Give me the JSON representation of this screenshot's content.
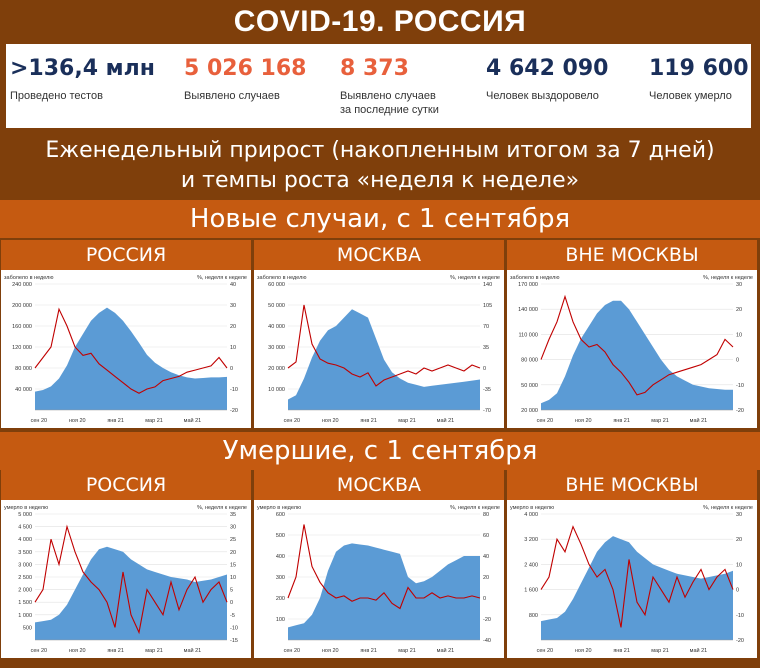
{
  "header": {
    "title": "COVID-19. РОССИЯ",
    "subtitle_line1": "Еженедельный прирост (накопленным итогом за 7 дней)",
    "subtitle_line2": "и темпы роста «неделя к неделе»",
    "section_cases": "Новые случаи, с 1 сентября",
    "section_deaths": "Умершие, с 1 сентября"
  },
  "stats": [
    {
      "value": ">136,4 млн",
      "label1": "Проведено тестов",
      "label2": "",
      "color": "#1a2f5a"
    },
    {
      "value": "5 026 168",
      "label1": "Выявлено случаев",
      "label2": "",
      "color": "#e8603c"
    },
    {
      "value": "8 373",
      "label1": "Выявлено случаев",
      "label2": "за последние сутки",
      "color": "#e8603c"
    },
    {
      "value": "4 642 090",
      "label1": "Человек выздоровело",
      "label2": "",
      "color": "#1a2f5a"
    },
    {
      "value": "119 600",
      "label1": "Человек умерло",
      "label2": "",
      "color": "#1a2f5a"
    }
  ],
  "colors": {
    "area": "#5b9bd5",
    "line": "#c00000"
  },
  "chart_data": [
    {
      "type": "area",
      "panel": "РОССИЯ",
      "ylabel": "заболело в неделю",
      "y2label": "%, неделя к неделе",
      "x_ticks": [
        "сен 20",
        "ноя 20",
        "янв 21",
        "мар 21",
        "май 21"
      ],
      "y_ticks": [
        "240 000",
        "200 000",
        "160 000",
        "120 000",
        "80 000",
        "40 000"
      ],
      "y2_ticks": [
        "40",
        "30",
        "20",
        "10",
        "0",
        "-10",
        "-20"
      ],
      "ylim": [
        0,
        240000
      ],
      "y2lim": [
        -20,
        40
      ],
      "series": [
        {
          "type": "area",
          "axis": "left",
          "values": [
            35000,
            38000,
            45000,
            60000,
            85000,
            120000,
            145000,
            170000,
            185000,
            195000,
            185000,
            170000,
            150000,
            128000,
            105000,
            90000,
            80000,
            72000,
            66000,
            62000,
            60000,
            61000,
            62000,
            62000,
            63000
          ]
        },
        {
          "type": "line",
          "axis": "right",
          "values": [
            0,
            5,
            10,
            28,
            20,
            10,
            6,
            7,
            2,
            -1,
            -4,
            -7,
            -10,
            -12,
            -10,
            -9,
            -6,
            -5,
            -4,
            -2,
            -1,
            0,
            1,
            5,
            0
          ]
        }
      ]
    },
    {
      "type": "area",
      "panel": "МОСКВА",
      "ylabel": "заболело в неделю",
      "y2label": "%, неделя к неделе",
      "x_ticks": [
        "сен 20",
        "ноя 20",
        "янв 21",
        "мар 21",
        "май 21"
      ],
      "y_ticks": [
        "60 000",
        "50 000",
        "40 000",
        "30 000",
        "20 000",
        "10 000"
      ],
      "y2_ticks": [
        "140",
        "105",
        "70",
        "35",
        "0",
        "-35",
        "-70"
      ],
      "ylim": [
        0,
        60000
      ],
      "y2lim": [
        -70,
        140
      ],
      "series": [
        {
          "type": "area",
          "axis": "left",
          "values": [
            5000,
            7000,
            15000,
            25000,
            33000,
            38000,
            40000,
            44000,
            48000,
            46000,
            44000,
            34000,
            24000,
            18000,
            15000,
            13000,
            12000,
            11000,
            11500,
            12000,
            12500,
            13000,
            13500,
            14000,
            14500
          ]
        },
        {
          "type": "line",
          "axis": "right",
          "values": [
            0,
            10,
            105,
            40,
            15,
            8,
            5,
            0,
            -10,
            -15,
            -8,
            -30,
            -20,
            -15,
            -10,
            -5,
            -10,
            0,
            -5,
            0,
            5,
            0,
            -5,
            5,
            0
          ]
        }
      ]
    },
    {
      "type": "area",
      "panel": "ВНЕ МОСКВЫ",
      "ylabel": "заболело в неделю",
      "y2label": "%, неделя к неделе",
      "x_ticks": [
        "сен 20",
        "ноя 20",
        "янв 21",
        "мар 21",
        "май 21"
      ],
      "y_ticks": [
        "170 000",
        "140 000",
        "110 000",
        "80 000",
        "50 000",
        "20 000"
      ],
      "y2_ticks": [
        "30",
        "20",
        "10",
        "0",
        "-10",
        "-20"
      ],
      "ylim": [
        20000,
        170000
      ],
      "y2lim": [
        -20,
        30
      ],
      "series": [
        {
          "type": "area",
          "axis": "left",
          "values": [
            28000,
            32000,
            40000,
            60000,
            85000,
            105000,
            120000,
            135000,
            145000,
            150000,
            150000,
            140000,
            125000,
            110000,
            95000,
            80000,
            68000,
            60000,
            55000,
            50000,
            48000,
            46000,
            45000,
            44000,
            44000
          ]
        },
        {
          "type": "line",
          "axis": "right",
          "values": [
            0,
            8,
            15,
            25,
            15,
            8,
            5,
            6,
            3,
            -2,
            -5,
            -9,
            -14,
            -13,
            -10,
            -8,
            -6,
            -5,
            -4,
            -3,
            -2,
            0,
            2,
            8,
            5
          ]
        }
      ]
    },
    {
      "type": "area",
      "panel": "РОССИЯ",
      "ylabel": "умерло в неделю",
      "y2label": "%, неделя к неделе",
      "x_ticks": [
        "сен 20",
        "ноя 20",
        "янв 21",
        "мар 21",
        "май 21"
      ],
      "y_ticks": [
        "5 000",
        "4 500",
        "4 000",
        "3 500",
        "3 000",
        "2 500",
        "2 000",
        "1 500",
        "1 000",
        "500"
      ],
      "y2_ticks": [
        "35",
        "30",
        "25",
        "20",
        "15",
        "10",
        "5",
        "0",
        "-5",
        "-10",
        "-15"
      ],
      "ylim": [
        0,
        5000
      ],
      "y2lim": [
        -15,
        35
      ],
      "series": [
        {
          "type": "area",
          "axis": "left",
          "values": [
            700,
            750,
            800,
            1000,
            1400,
            2000,
            2600,
            3200,
            3600,
            3700,
            3600,
            3500,
            3200,
            3000,
            2800,
            2700,
            2600,
            2500,
            2450,
            2400,
            2300,
            2350,
            2400,
            2500,
            2600
          ]
        },
        {
          "type": "line",
          "axis": "right",
          "values": [
            0,
            5,
            25,
            15,
            30,
            20,
            12,
            8,
            5,
            0,
            -10,
            12,
            -5,
            -12,
            5,
            0,
            -5,
            8,
            -3,
            5,
            10,
            0,
            5,
            8,
            0
          ]
        }
      ]
    },
    {
      "type": "area",
      "panel": "МОСКВА",
      "ylabel": "умерло в неделю",
      "y2label": "%, неделя к неделе",
      "x_ticks": [
        "сен 20",
        "ноя 20",
        "янв 21",
        "мар 21",
        "май 21"
      ],
      "y_ticks": [
        "600",
        "500",
        "400",
        "300",
        "200",
        "100"
      ],
      "y2_ticks": [
        "80",
        "60",
        "40",
        "20",
        "0",
        "-20",
        "-40"
      ],
      "ylim": [
        0,
        600
      ],
      "y2lim": [
        -40,
        80
      ],
      "series": [
        {
          "type": "area",
          "axis": "left",
          "values": [
            60,
            70,
            80,
            120,
            200,
            330,
            420,
            450,
            460,
            455,
            450,
            440,
            430,
            420,
            410,
            300,
            270,
            280,
            300,
            330,
            360,
            380,
            400,
            400,
            400
          ]
        },
        {
          "type": "line",
          "axis": "right",
          "values": [
            0,
            20,
            70,
            30,
            15,
            5,
            0,
            2,
            -3,
            0,
            0,
            -2,
            5,
            -5,
            -10,
            10,
            0,
            0,
            5,
            0,
            2,
            0,
            0,
            2,
            0
          ]
        }
      ]
    },
    {
      "type": "area",
      "panel": "ВНЕ МОСКВЫ",
      "ylabel": "умерло в неделю",
      "y2label": "%, неделя к неделе",
      "x_ticks": [
        "сен 20",
        "ноя 20",
        "янв 21",
        "мар 21",
        "май 21"
      ],
      "y_ticks": [
        "4 000",
        "3 200",
        "2 400",
        "1 600",
        "800"
      ],
      "y2_ticks": [
        "30",
        "20",
        "10",
        "0",
        "-10",
        "-20"
      ],
      "ylim": [
        0,
        4000
      ],
      "y2lim": [
        -20,
        30
      ],
      "series": [
        {
          "type": "area",
          "axis": "left",
          "values": [
            600,
            650,
            700,
            900,
            1300,
            1800,
            2300,
            2800,
            3100,
            3300,
            3200,
            3100,
            2800,
            2600,
            2400,
            2300,
            2200,
            2100,
            2050,
            2000,
            1950,
            2000,
            2050,
            2100,
            2200
          ]
        },
        {
          "type": "line",
          "axis": "right",
          "values": [
            0,
            5,
            20,
            15,
            25,
            18,
            10,
            5,
            8,
            0,
            -15,
            12,
            -5,
            -10,
            5,
            0,
            -5,
            5,
            -3,
            3,
            8,
            0,
            5,
            8,
            0
          ]
        }
      ]
    }
  ]
}
